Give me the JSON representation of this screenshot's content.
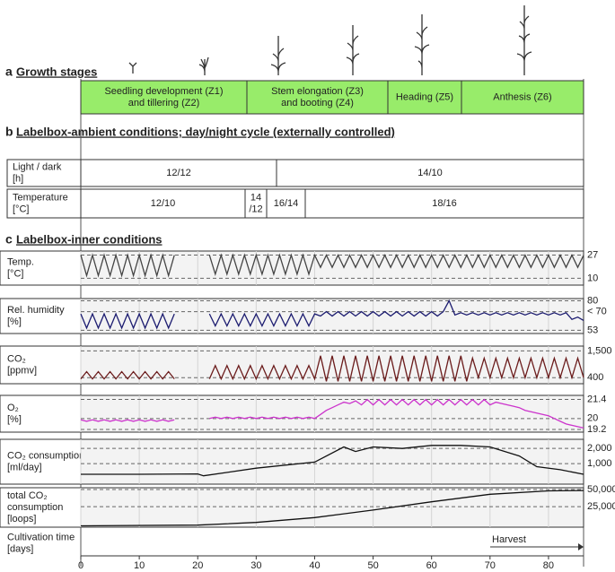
{
  "panel_a": {
    "letter": "a",
    "title": "Growth stages",
    "stages": [
      [
        "Seedling development (Z1)",
        "and tillering (Z2)"
      ],
      [
        "Stem elongation (Z3)",
        "and booting (Z4)"
      ],
      [
        "Heading (Z5)"
      ],
      [
        "Anthesis (Z6)"
      ]
    ]
  },
  "panel_b": {
    "letter": "b",
    "title": "Labelbox-ambient conditions; day/night cycle (externally controlled)",
    "rows": [
      {
        "label": [
          "Light / dark",
          "[h]"
        ],
        "cells": [
          [
            "12/12"
          ],
          [
            "14/10"
          ]
        ]
      },
      {
        "label": [
          "Temperature",
          "[°C]"
        ],
        "cells": [
          [
            "12/10"
          ],
          [
            "14",
            "/12"
          ],
          [
            "16/14"
          ],
          [
            "18/16"
          ]
        ]
      }
    ]
  },
  "panel_c": {
    "letter": "c",
    "title": "Labelbox-inner conditions"
  },
  "chart_data": [
    {
      "type": "line",
      "ylabel": [
        "Temp.",
        "[°C]"
      ],
      "xlim": [
        0,
        86
      ],
      "ylim": [
        5,
        30
      ],
      "yticks": [
        27,
        10
      ],
      "x": [
        0,
        1,
        2,
        3,
        4,
        5,
        6,
        7,
        8,
        9,
        10,
        11,
        12,
        13,
        14,
        15,
        16,
        17,
        18,
        19,
        20,
        21,
        22,
        23,
        24,
        25,
        26,
        27,
        28,
        29,
        30,
        31,
        32,
        33,
        34,
        35,
        36,
        37,
        38,
        39,
        40,
        41,
        42,
        43,
        44,
        45,
        46,
        47,
        48,
        49,
        50,
        51,
        52,
        53,
        54,
        55,
        56,
        57,
        58,
        59,
        60,
        61,
        62,
        63,
        64,
        65,
        66,
        67,
        68,
        69,
        70,
        71,
        72,
        73,
        74,
        75,
        76,
        77,
        78,
        79,
        80,
        81,
        82,
        83,
        84,
        85,
        86
      ],
      "series": [
        {
          "color": "#444444",
          "values": [
            27,
            12,
            27,
            12,
            27,
            12,
            27,
            12,
            27,
            12,
            27,
            12,
            27,
            12,
            27,
            12,
            27,
            null,
            null,
            null,
            null,
            null,
            27,
            13,
            27,
            13,
            27,
            13,
            27,
            13,
            27,
            13,
            27,
            13,
            27,
            13,
            27,
            13,
            27,
            13,
            27,
            18,
            27,
            18,
            27,
            18,
            27,
            18,
            27,
            18,
            27,
            18,
            27,
            18,
            27,
            18,
            27,
            18,
            27,
            18,
            27,
            18,
            27,
            18,
            27,
            18,
            27,
            18,
            27,
            18,
            27,
            18,
            27,
            18,
            27,
            18,
            27,
            18,
            27,
            18,
            27,
            18,
            27,
            18,
            27,
            18,
            27
          ]
        }
      ]
    },
    {
      "type": "line",
      "ylabel": [
        "Rel. humidity",
        "[%]"
      ],
      "xlim": [
        0,
        86
      ],
      "ylim": [
        50,
        82
      ],
      "yticks": [
        80,
        {
          "value": 70,
          "label": "< 70"
        },
        53
      ],
      "x": [
        0,
        1,
        2,
        3,
        4,
        5,
        6,
        7,
        8,
        9,
        10,
        11,
        12,
        13,
        14,
        15,
        16,
        17,
        18,
        19,
        20,
        21,
        22,
        23,
        24,
        25,
        26,
        27,
        28,
        29,
        30,
        31,
        32,
        33,
        34,
        35,
        36,
        37,
        38,
        39,
        40,
        41,
        42,
        43,
        44,
        45,
        46,
        47,
        48,
        49,
        50,
        51,
        52,
        53,
        54,
        55,
        56,
        57,
        58,
        59,
        60,
        61,
        62,
        63,
        64,
        65,
        66,
        67,
        68,
        69,
        70,
        71,
        72,
        73,
        74,
        75,
        76,
        77,
        78,
        79,
        80,
        81,
        82,
        83,
        84,
        85,
        86
      ],
      "series": [
        {
          "color": "#1c1c70",
          "values": [
            68,
            55,
            68,
            55,
            68,
            55,
            68,
            55,
            68,
            55,
            68,
            55,
            68,
            55,
            68,
            55,
            68,
            null,
            null,
            null,
            null,
            null,
            68,
            57,
            68,
            57,
            68,
            57,
            68,
            57,
            68,
            57,
            68,
            57,
            68,
            57,
            68,
            57,
            68,
            57,
            68,
            66,
            70,
            66,
            70,
            66,
            70,
            66,
            70,
            66,
            70,
            66,
            70,
            66,
            70,
            66,
            70,
            66,
            70,
            66,
            70,
            66,
            70,
            80,
            67,
            69,
            67,
            69,
            67,
            69,
            67,
            69,
            67,
            69,
            67,
            69,
            67,
            69,
            67,
            69,
            67,
            69,
            67,
            69,
            63,
            65,
            62
          ]
        }
      ]
    },
    {
      "type": "line",
      "ylabel": [
        "CO₂",
        "[ppmv]"
      ],
      "xlim": [
        0,
        86
      ],
      "ylim": [
        150,
        1700
      ],
      "yticks": [
        {
          "value": 1500,
          "label": "1,500"
        },
        400
      ],
      "x": [
        0,
        1,
        2,
        3,
        4,
        5,
        6,
        7,
        8,
        9,
        10,
        11,
        12,
        13,
        14,
        15,
        16,
        17,
        18,
        19,
        20,
        21,
        22,
        23,
        24,
        25,
        26,
        27,
        28,
        29,
        30,
        31,
        32,
        33,
        34,
        35,
        36,
        37,
        38,
        39,
        40,
        41,
        42,
        43,
        44,
        45,
        46,
        47,
        48,
        49,
        50,
        51,
        52,
        53,
        54,
        55,
        56,
        57,
        58,
        59,
        60,
        61,
        62,
        63,
        64,
        65,
        66,
        67,
        68,
        69,
        70,
        71,
        72,
        73,
        74,
        75,
        76,
        77,
        78,
        79,
        80,
        81,
        82,
        83,
        84,
        85,
        86
      ],
      "series": [
        {
          "color": "#6b1c1c",
          "values": [
            350,
            650,
            350,
            650,
            350,
            650,
            350,
            650,
            350,
            650,
            350,
            650,
            350,
            650,
            350,
            650,
            350,
            null,
            null,
            null,
            null,
            null,
            350,
            900,
            350,
            900,
            350,
            900,
            350,
            900,
            350,
            900,
            350,
            900,
            350,
            900,
            350,
            900,
            350,
            900,
            350,
            1300,
            250,
            1300,
            250,
            1300,
            250,
            1300,
            250,
            1300,
            250,
            1300,
            250,
            1300,
            250,
            1300,
            250,
            1300,
            250,
            1300,
            250,
            1300,
            250,
            1300,
            250,
            1300,
            250,
            1200,
            400,
            1200,
            400,
            1200,
            400,
            1200,
            400,
            1200,
            400,
            1200,
            400,
            1200,
            400,
            1200,
            400,
            1200,
            400,
            1200,
            400
          ]
        }
      ]
    },
    {
      "type": "line",
      "ylabel": [
        "O₂",
        "[%]"
      ],
      "xlim": [
        0,
        86
      ],
      "ylim": [
        19.0,
        21.7
      ],
      "yticks": [
        21.4,
        20,
        19.2
      ],
      "x": [
        0,
        1,
        2,
        3,
        4,
        5,
        6,
        7,
        8,
        9,
        10,
        11,
        12,
        13,
        14,
        15,
        16,
        17,
        18,
        19,
        20,
        21,
        22,
        23,
        24,
        25,
        26,
        27,
        28,
        29,
        30,
        31,
        32,
        33,
        34,
        35,
        36,
        37,
        38,
        39,
        40,
        41,
        42,
        43,
        44,
        45,
        46,
        47,
        48,
        49,
        50,
        51,
        52,
        53,
        54,
        55,
        56,
        57,
        58,
        59,
        60,
        61,
        62,
        63,
        64,
        65,
        66,
        67,
        68,
        69,
        70,
        71,
        72,
        73,
        74,
        75,
        76,
        77,
        78,
        79,
        80,
        81,
        82,
        83,
        84,
        85,
        86
      ],
      "series": [
        {
          "color": "#cc33cc",
          "values": [
            19.9,
            19.8,
            19.9,
            19.8,
            19.9,
            19.8,
            19.9,
            19.8,
            19.9,
            19.8,
            19.9,
            19.8,
            19.9,
            19.8,
            19.9,
            19.8,
            19.9,
            null,
            null,
            null,
            null,
            null,
            20.0,
            20.1,
            20.0,
            20.1,
            20.0,
            20.1,
            20.0,
            20.1,
            20.0,
            20.1,
            20.0,
            20.1,
            20.0,
            20.1,
            20.0,
            20.1,
            20.0,
            20.1,
            20.0,
            20.3,
            20.6,
            20.8,
            21.0,
            21.2,
            21.1,
            21.3,
            21.0,
            21.4,
            21.0,
            21.4,
            21.0,
            21.4,
            21.0,
            21.4,
            21.0,
            21.4,
            21.0,
            21.4,
            21.0,
            21.4,
            21.0,
            21.4,
            21.0,
            21.4,
            21.0,
            21.4,
            21.0,
            21.4,
            21.0,
            21.2,
            21.1,
            21.0,
            20.9,
            20.8,
            20.6,
            20.5,
            20.4,
            20.3,
            20.2,
            20.0,
            19.8,
            19.6,
            19.5,
            19.4,
            19.3
          ]
        }
      ]
    },
    {
      "type": "line",
      "ylabel": [
        "CO₂ consumption",
        "[ml/day]"
      ],
      "xlim": [
        0,
        86
      ],
      "ylim": [
        -350,
        2600
      ],
      "yticks": [
        {
          "value": 2000,
          "label": "2,000"
        },
        {
          "value": 1000,
          "label": "1,000"
        }
      ],
      "x": [
        0,
        10,
        20,
        21,
        30,
        40,
        45,
        47,
        50,
        55,
        60,
        65,
        70,
        75,
        78,
        82,
        86
      ],
      "series": [
        {
          "color": "#111111",
          "values": [
            300,
            300,
            320,
            200,
            700,
            1100,
            2100,
            1800,
            2100,
            2000,
            2200,
            2200,
            2100,
            1500,
            800,
            600,
            300
          ]
        }
      ]
    },
    {
      "type": "line",
      "ylabel": [
        "total CO₂",
        "consumption",
        "[loops]"
      ],
      "xlim": [
        0,
        86
      ],
      "ylim": [
        -5000,
        52600
      ],
      "yticks": [
        {
          "value": 50000,
          "label": "50,000"
        },
        {
          "value": 25000,
          "label": "25,000"
        }
      ],
      "x": [
        0,
        20,
        30,
        40,
        50,
        60,
        70,
        80,
        86
      ],
      "series": [
        {
          "color": "#111111",
          "values": [
            -3000,
            -2000,
            2000,
            9000,
            20000,
            32000,
            43000,
            48000,
            48500
          ]
        }
      ]
    },
    {
      "type": "axis",
      "ylabel": [
        "Cultivation time",
        "[days]"
      ],
      "xlim": [
        0,
        86
      ],
      "xticks": [
        0,
        10,
        20,
        30,
        40,
        50,
        60,
        70,
        80
      ],
      "annotation": "Harvest"
    }
  ]
}
